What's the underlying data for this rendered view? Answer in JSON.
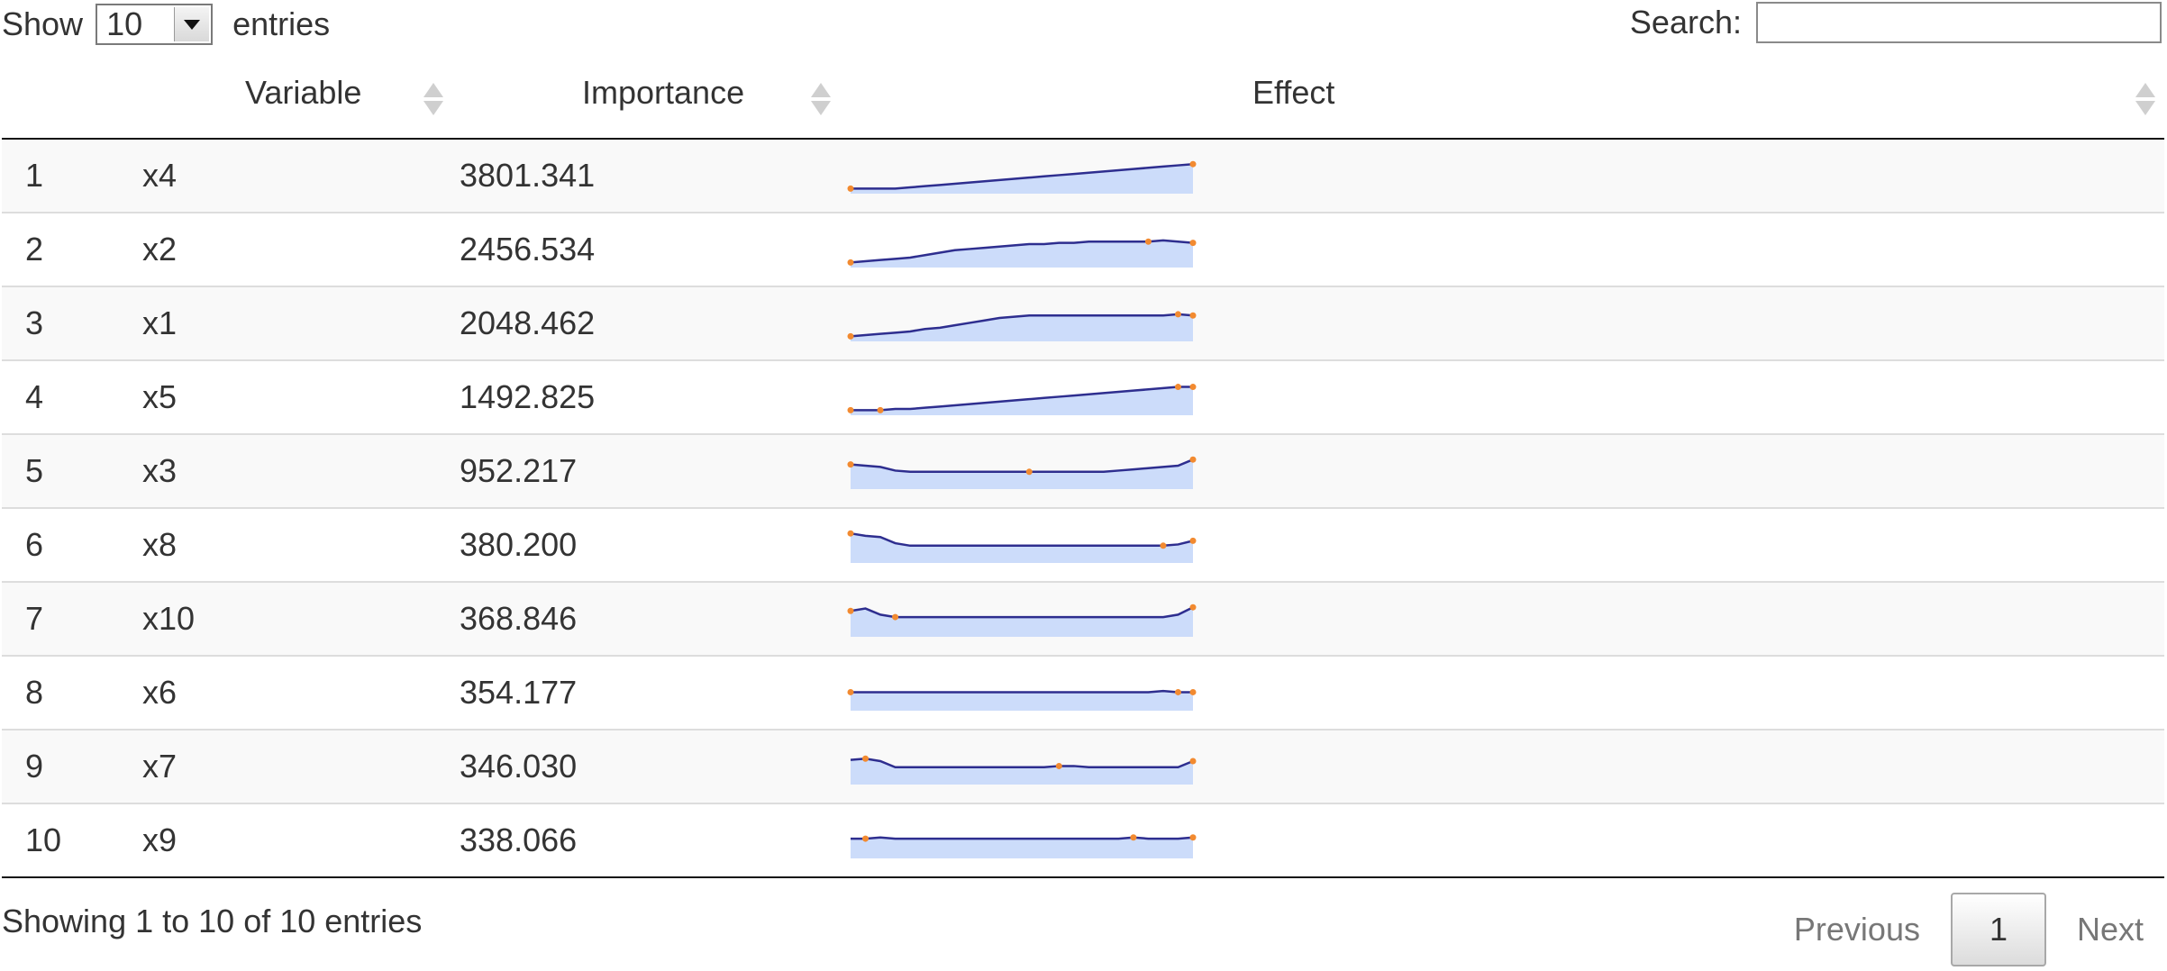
{
  "length": {
    "show_label": "Show",
    "value": "10",
    "entries_label": "entries"
  },
  "search": {
    "label": "Search:",
    "value": ""
  },
  "table": {
    "columns": [
      {
        "label": ""
      },
      {
        "label": "Variable"
      },
      {
        "label": "Importance"
      },
      {
        "label": "Effect"
      }
    ],
    "rows": [
      {
        "idx": "1",
        "variable": "x4",
        "importance": "3801.341",
        "effect": [
          0.0,
          0.0,
          0.0,
          0.0,
          0.05,
          0.1,
          0.15,
          0.2,
          0.25,
          0.3,
          0.35,
          0.4,
          0.45,
          0.5,
          0.55,
          0.6,
          0.65,
          0.7,
          0.75,
          0.8,
          0.85,
          0.9,
          0.95,
          1.0
        ],
        "highlights": [
          0,
          23
        ]
      },
      {
        "idx": "2",
        "variable": "x2",
        "importance": "2456.534",
        "effect": [
          0.0,
          0.05,
          0.1,
          0.15,
          0.2,
          0.3,
          0.4,
          0.5,
          0.55,
          0.6,
          0.65,
          0.7,
          0.75,
          0.75,
          0.8,
          0.8,
          0.85,
          0.85,
          0.85,
          0.85,
          0.85,
          0.9,
          0.85,
          0.8
        ],
        "highlights": [
          0,
          20,
          23
        ]
      },
      {
        "idx": "3",
        "variable": "x1",
        "importance": "2048.462",
        "effect": [
          0.0,
          0.05,
          0.1,
          0.15,
          0.2,
          0.3,
          0.35,
          0.45,
          0.55,
          0.65,
          0.75,
          0.8,
          0.85,
          0.85,
          0.85,
          0.85,
          0.85,
          0.85,
          0.85,
          0.85,
          0.85,
          0.85,
          0.9,
          0.85
        ],
        "highlights": [
          0,
          22,
          23
        ]
      },
      {
        "idx": "4",
        "variable": "x5",
        "importance": "1492.825",
        "effect": [
          0.0,
          0.0,
          0.0,
          0.05,
          0.05,
          0.1,
          0.15,
          0.2,
          0.25,
          0.3,
          0.35,
          0.4,
          0.45,
          0.5,
          0.55,
          0.6,
          0.65,
          0.7,
          0.75,
          0.8,
          0.85,
          0.9,
          0.95,
          0.95
        ],
        "highlights": [
          0,
          2,
          22,
          23
        ]
      },
      {
        "idx": "5",
        "variable": "x3",
        "importance": "952.217",
        "effect": [
          0.8,
          0.75,
          0.7,
          0.55,
          0.5,
          0.5,
          0.5,
          0.5,
          0.5,
          0.5,
          0.5,
          0.5,
          0.5,
          0.5,
          0.5,
          0.5,
          0.5,
          0.5,
          0.55,
          0.6,
          0.65,
          0.7,
          0.75,
          1.0
        ],
        "highlights": [
          0,
          12,
          23
        ]
      },
      {
        "idx": "6",
        "variable": "x8",
        "importance": "380.200",
        "effect": [
          1.0,
          0.9,
          0.85,
          0.6,
          0.5,
          0.5,
          0.5,
          0.5,
          0.5,
          0.5,
          0.5,
          0.5,
          0.5,
          0.5,
          0.5,
          0.5,
          0.5,
          0.5,
          0.5,
          0.5,
          0.5,
          0.5,
          0.55,
          0.7
        ],
        "highlights": [
          0,
          21,
          23
        ]
      },
      {
        "idx": "7",
        "variable": "x10",
        "importance": "368.846",
        "effect": [
          0.85,
          0.95,
          0.7,
          0.6,
          0.6,
          0.6,
          0.6,
          0.6,
          0.6,
          0.6,
          0.6,
          0.6,
          0.6,
          0.6,
          0.6,
          0.6,
          0.6,
          0.6,
          0.6,
          0.6,
          0.6,
          0.6,
          0.7,
          1.0
        ],
        "highlights": [
          0,
          3,
          23
        ]
      },
      {
        "idx": "8",
        "variable": "x6",
        "importance": "354.177",
        "effect": [
          0.55,
          0.55,
          0.55,
          0.55,
          0.55,
          0.55,
          0.55,
          0.55,
          0.55,
          0.55,
          0.55,
          0.55,
          0.55,
          0.55,
          0.55,
          0.55,
          0.55,
          0.55,
          0.55,
          0.55,
          0.55,
          0.6,
          0.55,
          0.55
        ],
        "highlights": [
          0,
          22,
          23
        ]
      },
      {
        "idx": "9",
        "variable": "x7",
        "importance": "346.030",
        "effect": [
          0.8,
          0.85,
          0.75,
          0.5,
          0.5,
          0.5,
          0.5,
          0.5,
          0.5,
          0.5,
          0.5,
          0.5,
          0.5,
          0.5,
          0.55,
          0.55,
          0.5,
          0.5,
          0.5,
          0.5,
          0.5,
          0.5,
          0.5,
          0.75
        ],
        "highlights": [
          1,
          14,
          23
        ]
      },
      {
        "idx": "10",
        "variable": "x9",
        "importance": "338.066",
        "effect": [
          0.6,
          0.6,
          0.65,
          0.6,
          0.6,
          0.6,
          0.6,
          0.6,
          0.6,
          0.6,
          0.6,
          0.6,
          0.6,
          0.6,
          0.6,
          0.6,
          0.6,
          0.6,
          0.6,
          0.65,
          0.6,
          0.6,
          0.6,
          0.65
        ],
        "highlights": [
          1,
          19,
          23
        ]
      }
    ]
  },
  "footer": {
    "info": "Showing 1 to 10 of 10 entries",
    "previous": "Previous",
    "current_page": "1",
    "next": "Next"
  },
  "colors": {
    "spark_line": "#2e2e8f",
    "spark_fill": "#ccdcfa",
    "spark_marker": "#f28a30"
  }
}
